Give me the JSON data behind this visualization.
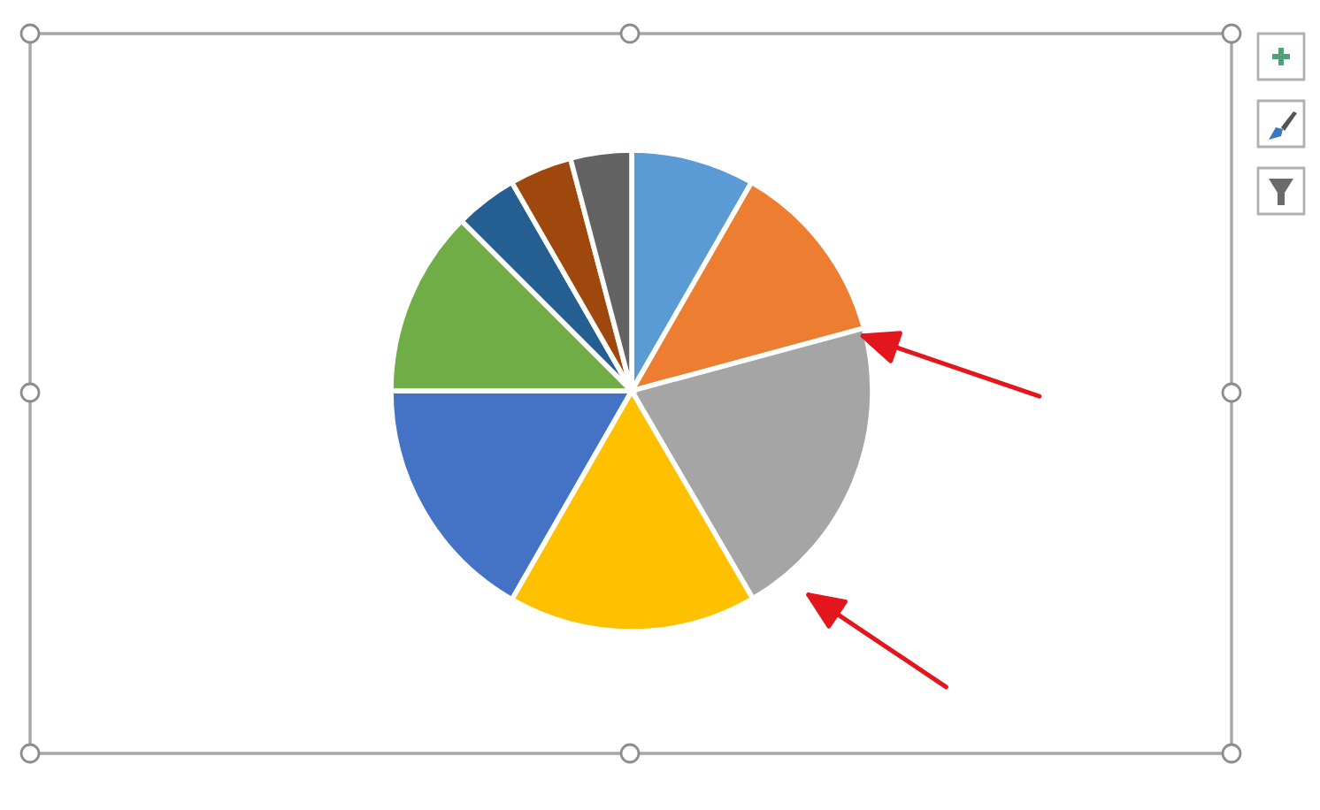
{
  "chart_data": {
    "type": "pie",
    "categories": [
      null,
      null,
      null,
      null,
      null,
      null,
      null,
      null,
      null
    ],
    "values": [
      8.3,
      12.5,
      20.8,
      16.7,
      16.7,
      12.5,
      4.2,
      4.2,
      4.1
    ],
    "colors": [
      "#5b9bd5",
      "#ed7d31",
      "#a5a5a5",
      "#ffc000",
      "#4472c4",
      "#70ad47",
      "#255e91",
      "#9e480e",
      "#636363"
    ]
  }
}
